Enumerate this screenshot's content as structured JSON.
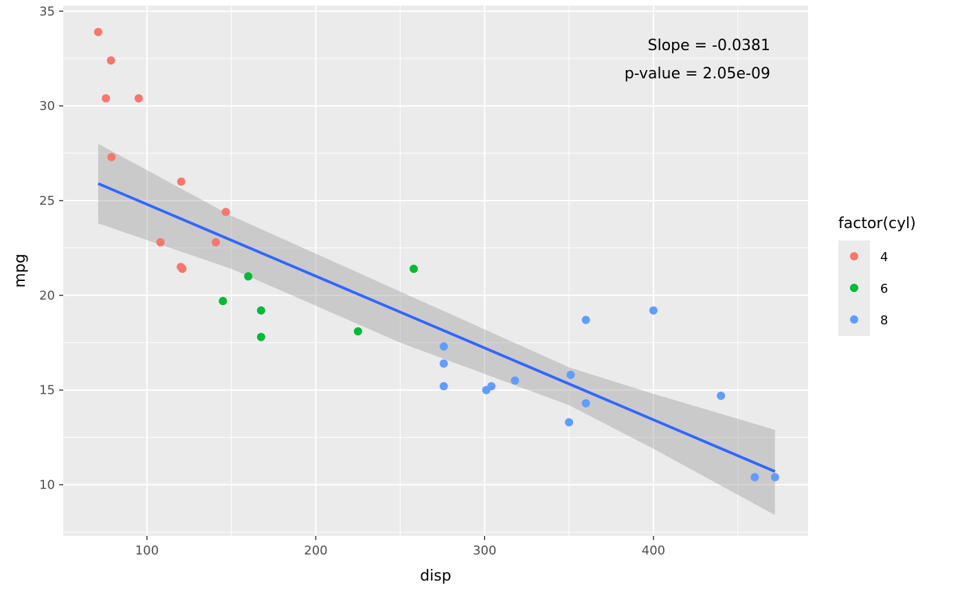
{
  "chart_data": {
    "type": "scatter",
    "xlabel": "disp",
    "ylabel": "mpg",
    "xlim": [
      50.4,
      491.6
    ],
    "ylim": [
      7.3,
      35.3
    ],
    "x_ticks": [
      100,
      200,
      300,
      400
    ],
    "y_ticks": [
      10,
      15,
      20,
      25,
      30,
      35
    ],
    "x_tick_labels": [
      "100",
      "200",
      "300",
      "400"
    ],
    "y_tick_labels": [
      "10",
      "15",
      "20",
      "25",
      "30",
      "35"
    ],
    "grid": true,
    "annotations": [
      "Slope = -0.0381",
      "p-value = 2.05e-09"
    ],
    "legend": {
      "title": "factor(cyl)",
      "position": "right",
      "entries": [
        {
          "label": "4",
          "color": "#F8766D"
        },
        {
          "label": "6",
          "color": "#00BA38"
        },
        {
          "label": "8",
          "color": "#619CFF"
        }
      ]
    },
    "series": [
      {
        "name": "4",
        "color": "#F8766D",
        "points": [
          [
            71.1,
            33.9
          ],
          [
            78.7,
            32.4
          ],
          [
            75.7,
            30.4
          ],
          [
            95.1,
            30.4
          ],
          [
            79.0,
            27.3
          ],
          [
            120.3,
            26.0
          ],
          [
            146.7,
            24.4
          ],
          [
            108.0,
            22.8
          ],
          [
            140.8,
            22.8
          ],
          [
            120.1,
            21.5
          ],
          [
            121.0,
            21.4
          ]
        ]
      },
      {
        "name": "6",
        "color": "#00BA38",
        "points": [
          [
            160.0,
            21.0
          ],
          [
            258.0,
            21.4
          ],
          [
            145.0,
            19.7
          ],
          [
            167.6,
            19.2
          ],
          [
            167.6,
            17.8
          ],
          [
            225.0,
            18.1
          ]
        ]
      },
      {
        "name": "8",
        "color": "#619CFF",
        "points": [
          [
            275.8,
            17.3
          ],
          [
            275.8,
            16.4
          ],
          [
            275.8,
            15.2
          ],
          [
            301.0,
            15.0
          ],
          [
            304.0,
            15.2
          ],
          [
            318.0,
            15.5
          ],
          [
            351.0,
            15.8
          ],
          [
            360.0,
            18.7
          ],
          [
            400.0,
            19.2
          ],
          [
            360.0,
            14.3
          ],
          [
            350.0,
            13.3
          ],
          [
            440.0,
            14.7
          ],
          [
            460.0,
            10.4
          ],
          [
            472.0,
            10.4
          ]
        ]
      }
    ],
    "fit_line": {
      "color": "#3366FF",
      "points": [
        [
          71.1,
          25.9
        ],
        [
          472.0,
          10.7
        ]
      ]
    },
    "confidence_band": {
      "color": "#999999",
      "upper": [
        [
          71.1,
          28.0
        ],
        [
          150,
          24.2
        ],
        [
          250,
          20.2
        ],
        [
          350,
          16.2
        ],
        [
          400,
          14.8
        ],
        [
          472.0,
          12.9
        ]
      ],
      "lower": [
        [
          71.1,
          23.8
        ],
        [
          150,
          21.4
        ],
        [
          250,
          17.5
        ],
        [
          350,
          14.2
        ],
        [
          400,
          11.9
        ],
        [
          472.0,
          8.4
        ]
      ]
    }
  }
}
